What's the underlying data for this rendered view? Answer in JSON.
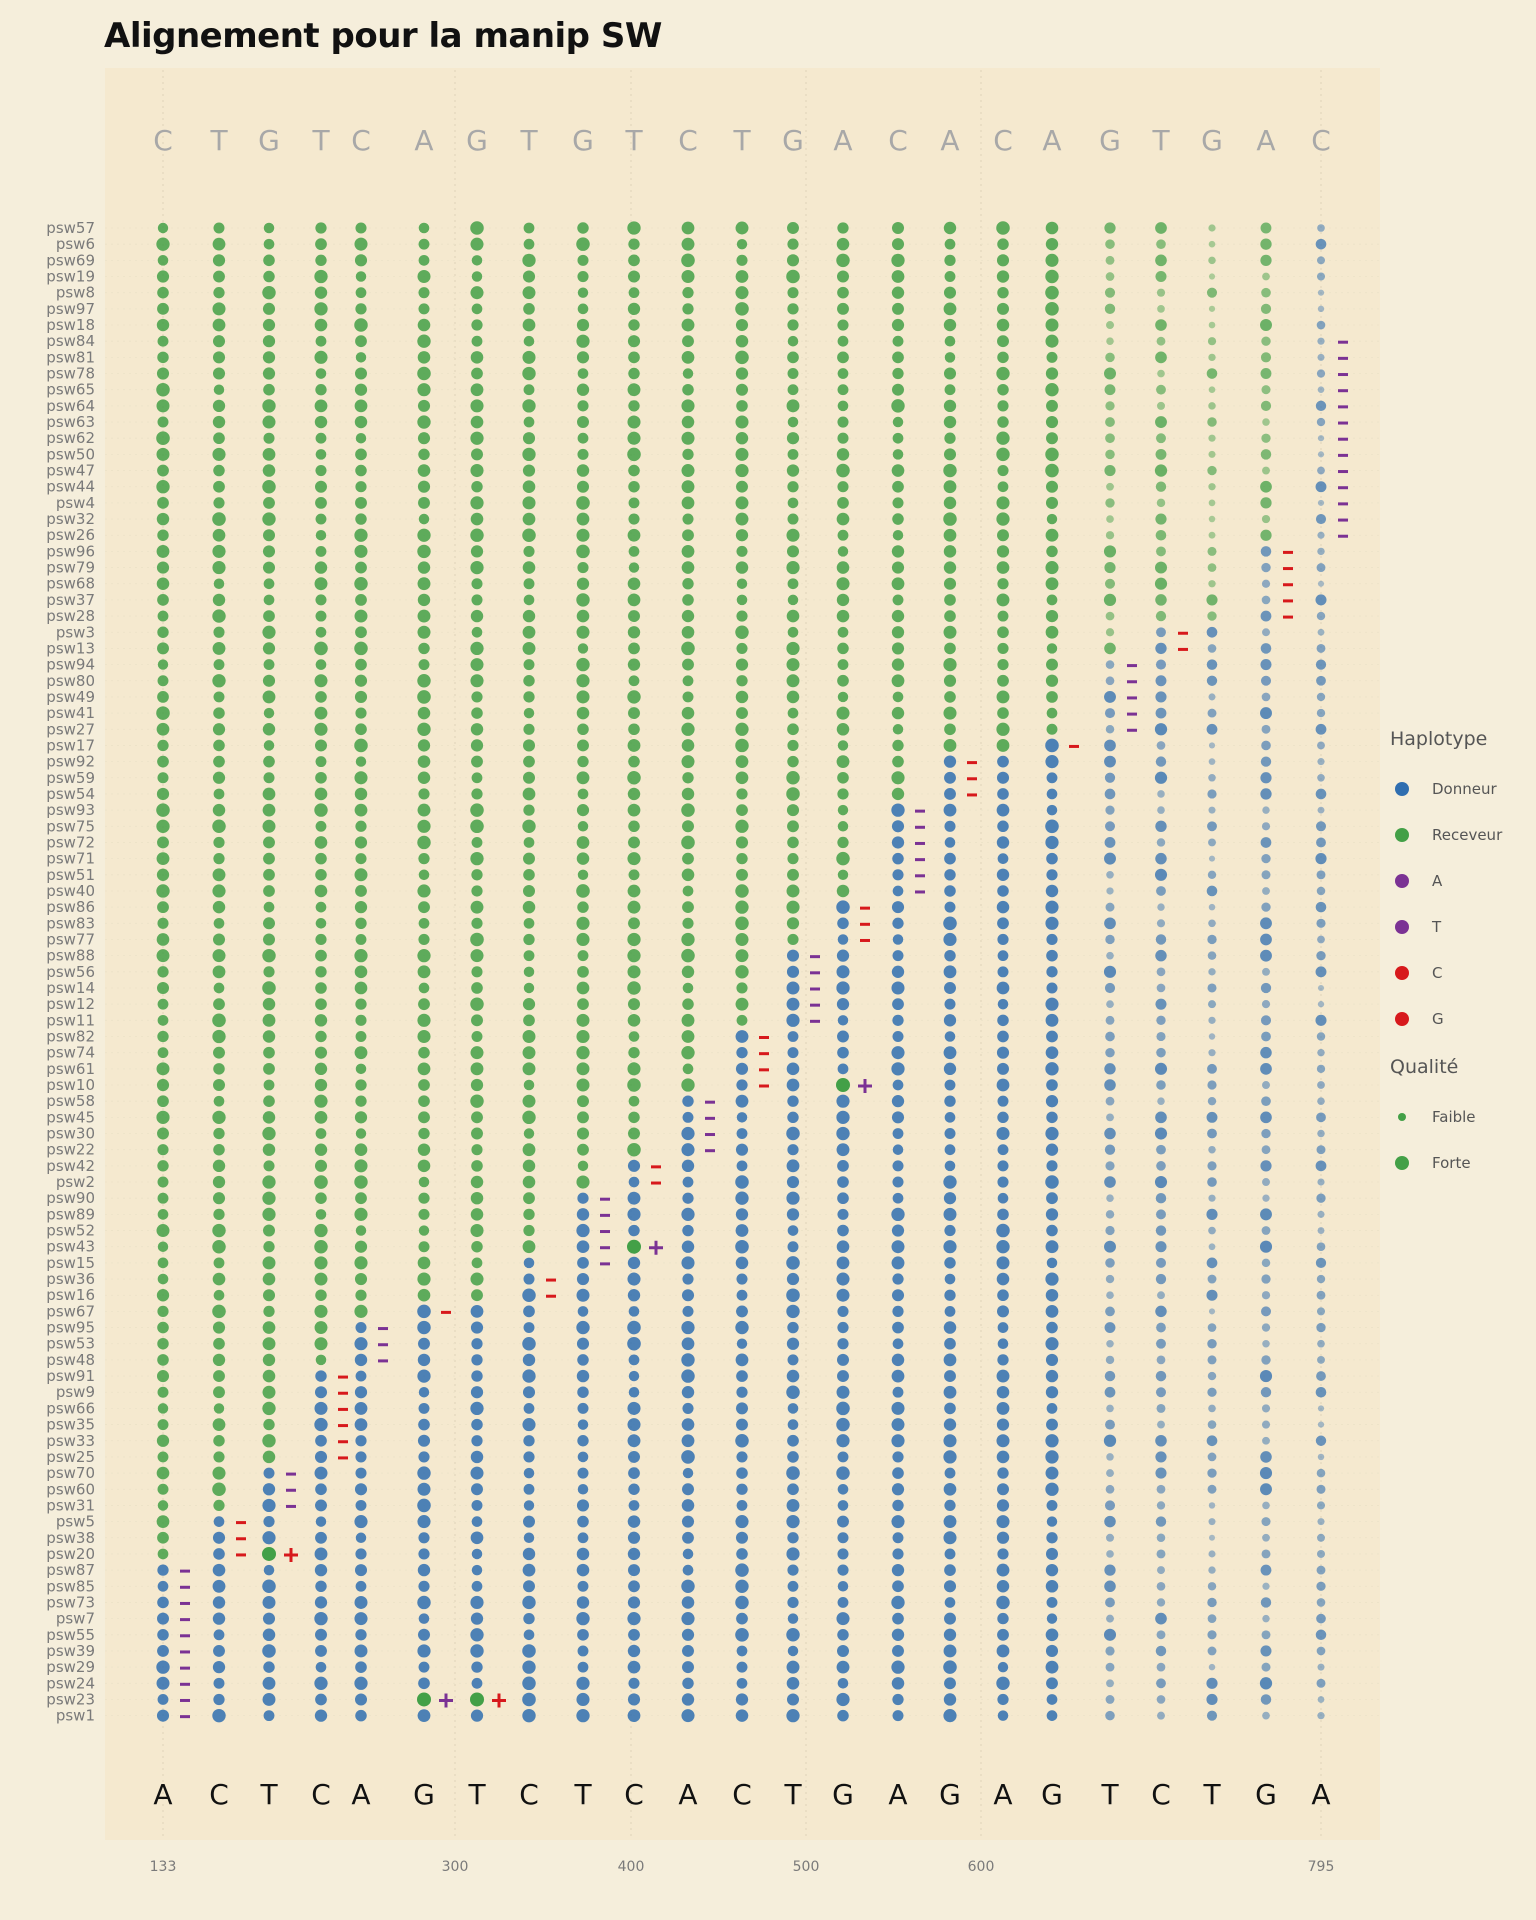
{
  "chart_data": {
    "type": "scatter",
    "title": "Alignement pour la manip SW",
    "x_ticks": [
      "133",
      "300",
      "400",
      "500",
      "600",
      "795"
    ],
    "top_bases": [
      "C",
      "T",
      "G",
      "T",
      "C",
      "A",
      "G",
      "T",
      "G",
      "T",
      "C",
      "T",
      "G",
      "A",
      "C",
      "A",
      "C",
      "A",
      "G",
      "T",
      "G",
      "A",
      "C"
    ],
    "bottom_bases": [
      "A",
      "C",
      "T",
      "C",
      "A",
      "G",
      "T",
      "C",
      "T",
      "C",
      "A",
      "C",
      "T",
      "G",
      "A",
      "G",
      "A",
      "G",
      "T",
      "C",
      "T",
      "G",
      "A"
    ],
    "rows": [
      "psw57",
      "psw6",
      "psw69",
      "psw19",
      "psw8",
      "psw97",
      "psw18",
      "psw84",
      "psw81",
      "psw78",
      "psw65",
      "psw64",
      "psw63",
      "psw62",
      "psw50",
      "psw47",
      "psw44",
      "psw4",
      "psw32",
      "psw26",
      "psw96",
      "psw79",
      "psw68",
      "psw37",
      "psw28",
      "psw3",
      "psw13",
      "psw94",
      "psw80",
      "psw49",
      "psw41",
      "psw27",
      "psw17",
      "psw92",
      "psw59",
      "psw54",
      "psw93",
      "psw75",
      "psw72",
      "psw71",
      "psw51",
      "psw40",
      "psw86",
      "psw83",
      "psw77",
      "psw88",
      "psw56",
      "psw14",
      "psw12",
      "psw11",
      "psw82",
      "psw74",
      "psw61",
      "psw10",
      "psw58",
      "psw45",
      "psw30",
      "psw22",
      "psw42",
      "psw2",
      "psw90",
      "psw89",
      "psw52",
      "psw43",
      "psw15",
      "psw36",
      "psw16",
      "psw67",
      "psw95",
      "psw53",
      "psw48",
      "psw91",
      "psw9",
      "psw66",
      "psw35",
      "psw33",
      "psw25",
      "psw70",
      "psw60",
      "psw31",
      "psw5",
      "psw38",
      "psw20",
      "psw87",
      "psw85",
      "psw73",
      "psw7",
      "psw55",
      "psw39",
      "psw29",
      "psw24",
      "psw23",
      "psw1"
    ],
    "switch_column": [
      22,
      22,
      22,
      22,
      22,
      22,
      22,
      22,
      22,
      22,
      22,
      22,
      22,
      22,
      22,
      22,
      22,
      22,
      22,
      22,
      21,
      21,
      21,
      21,
      21,
      19,
      19,
      18,
      18,
      18,
      18,
      18,
      17,
      15,
      15,
      15,
      14,
      14,
      14,
      14,
      14,
      14,
      13,
      13,
      13,
      12,
      12,
      12,
      12,
      12,
      11,
      11,
      11,
      11,
      10,
      10,
      10,
      10,
      9,
      9,
      8,
      8,
      8,
      8,
      7,
      7,
      7,
      5,
      4,
      4,
      4,
      3,
      3,
      3,
      3,
      3,
      3,
      2,
      2,
      2,
      1,
      1,
      1,
      0,
      0,
      0,
      0,
      0,
      0,
      0,
      0,
      0,
      0
    ],
    "recombination_marks": [
      {
        "row": "psw84",
        "column": 22,
        "symbol": "−",
        "base": "A"
      },
      {
        "row": "psw81",
        "column": 22,
        "symbol": "−",
        "base": "A"
      },
      {
        "row": "psw78",
        "column": 22,
        "symbol": "−",
        "base": "A"
      },
      {
        "row": "psw65",
        "column": 22,
        "symbol": "−",
        "base": "A"
      },
      {
        "row": "psw64",
        "column": 22,
        "symbol": "−",
        "base": "A"
      },
      {
        "row": "psw63",
        "column": 22,
        "symbol": "−",
        "base": "A"
      },
      {
        "row": "psw62",
        "column": 22,
        "symbol": "−",
        "base": "A"
      },
      {
        "row": "psw50",
        "column": 22,
        "symbol": "−",
        "base": "A"
      },
      {
        "row": "psw47",
        "column": 22,
        "symbol": "−",
        "base": "A"
      },
      {
        "row": "psw44",
        "column": 22,
        "symbol": "−",
        "base": "A"
      },
      {
        "row": "psw4",
        "column": 22,
        "symbol": "−",
        "base": "A"
      },
      {
        "row": "psw32",
        "column": 22,
        "symbol": "−",
        "base": "A"
      },
      {
        "row": "psw26",
        "column": 22,
        "symbol": "−",
        "base": "A"
      },
      {
        "row": "psw96",
        "column": 21,
        "symbol": "−",
        "base": "G"
      },
      {
        "row": "psw79",
        "column": 21,
        "symbol": "−",
        "base": "G"
      },
      {
        "row": "psw68",
        "column": 21,
        "symbol": "−",
        "base": "G"
      },
      {
        "row": "psw37",
        "column": 21,
        "symbol": "−",
        "base": "G"
      },
      {
        "row": "psw28",
        "column": 21,
        "symbol": "−",
        "base": "G"
      },
      {
        "row": "psw3",
        "column": 19,
        "symbol": "−",
        "base": "C"
      },
      {
        "row": "psw13",
        "column": 19,
        "symbol": "−",
        "base": "C"
      },
      {
        "row": "psw94",
        "column": 18,
        "symbol": "−",
        "base": "T"
      },
      {
        "row": "psw80",
        "column": 18,
        "symbol": "−",
        "base": "T"
      },
      {
        "row": "psw49",
        "column": 18,
        "symbol": "−",
        "base": "T"
      },
      {
        "row": "psw41",
        "column": 18,
        "symbol": "−",
        "base": "T"
      },
      {
        "row": "psw27",
        "column": 18,
        "symbol": "−",
        "base": "T"
      },
      {
        "row": "psw17",
        "column": 17,
        "symbol": "−",
        "base": "G"
      },
      {
        "row": "psw92",
        "column": 15,
        "symbol": "−",
        "base": "G"
      },
      {
        "row": "psw59",
        "column": 15,
        "symbol": "−",
        "base": "G"
      },
      {
        "row": "psw54",
        "column": 15,
        "symbol": "−",
        "base": "G"
      },
      {
        "row": "psw93",
        "column": 14,
        "symbol": "−",
        "base": "A"
      },
      {
        "row": "psw75",
        "column": 14,
        "symbol": "−",
        "base": "A"
      },
      {
        "row": "psw72",
        "column": 14,
        "symbol": "−",
        "base": "A"
      },
      {
        "row": "psw71",
        "column": 14,
        "symbol": "−",
        "base": "A"
      },
      {
        "row": "psw51",
        "column": 14,
        "symbol": "−",
        "base": "A"
      },
      {
        "row": "psw40",
        "column": 14,
        "symbol": "−",
        "base": "A"
      },
      {
        "row": "psw86",
        "column": 13,
        "symbol": "−",
        "base": "G"
      },
      {
        "row": "psw83",
        "column": 13,
        "symbol": "−",
        "base": "G"
      },
      {
        "row": "psw77",
        "column": 13,
        "symbol": "−",
        "base": "G"
      },
      {
        "row": "psw10",
        "column": 13,
        "symbol": "+",
        "base": "A"
      },
      {
        "row": "psw88",
        "column": 12,
        "symbol": "−",
        "base": "T"
      },
      {
        "row": "psw56",
        "column": 12,
        "symbol": "−",
        "base": "T"
      },
      {
        "row": "psw14",
        "column": 12,
        "symbol": "−",
        "base": "T"
      },
      {
        "row": "psw12",
        "column": 12,
        "symbol": "−",
        "base": "T"
      },
      {
        "row": "psw11",
        "column": 12,
        "symbol": "−",
        "base": "T"
      },
      {
        "row": "psw82",
        "column": 11,
        "symbol": "−",
        "base": "C"
      },
      {
        "row": "psw74",
        "column": 11,
        "symbol": "−",
        "base": "C"
      },
      {
        "row": "psw61",
        "column": 11,
        "symbol": "−",
        "base": "C"
      },
      {
        "row": "psw10",
        "column": 11,
        "symbol": "−",
        "base": "C"
      },
      {
        "row": "psw58",
        "column": 10,
        "symbol": "−",
        "base": "A"
      },
      {
        "row": "psw45",
        "column": 10,
        "symbol": "−",
        "base": "A"
      },
      {
        "row": "psw30",
        "column": 10,
        "symbol": "−",
        "base": "A"
      },
      {
        "row": "psw22",
        "column": 10,
        "symbol": "−",
        "base": "A"
      },
      {
        "row": "psw42",
        "column": 9,
        "symbol": "−",
        "base": "C"
      },
      {
        "row": "psw2",
        "column": 9,
        "symbol": "−",
        "base": "C"
      },
      {
        "row": "psw43",
        "column": 9,
        "symbol": "+",
        "base": "T"
      },
      {
        "row": "psw90",
        "column": 8,
        "symbol": "−",
        "base": "T"
      },
      {
        "row": "psw89",
        "column": 8,
        "symbol": "−",
        "base": "T"
      },
      {
        "row": "psw52",
        "column": 8,
        "symbol": "−",
        "base": "T"
      },
      {
        "row": "psw43",
        "column": 8,
        "symbol": "−",
        "base": "T"
      },
      {
        "row": "psw15",
        "column": 8,
        "symbol": "−",
        "base": "T"
      },
      {
        "row": "psw36",
        "column": 7,
        "symbol": "−",
        "base": "C"
      },
      {
        "row": "psw16",
        "column": 7,
        "symbol": "−",
        "base": "C"
      },
      {
        "row": "psw67",
        "column": 5,
        "symbol": "−",
        "base": "G"
      },
      {
        "row": "psw95",
        "column": 4,
        "symbol": "−",
        "base": "A"
      },
      {
        "row": "psw53",
        "column": 4,
        "symbol": "−",
        "base": "A"
      },
      {
        "row": "psw48",
        "column": 4,
        "symbol": "−",
        "base": "A"
      },
      {
        "row": "psw91",
        "column": 3,
        "symbol": "−",
        "base": "C"
      },
      {
        "row": "psw9",
        "column": 3,
        "symbol": "−",
        "base": "C"
      },
      {
        "row": "psw66",
        "column": 3,
        "symbol": "−",
        "base": "C"
      },
      {
        "row": "psw35",
        "column": 3,
        "symbol": "−",
        "base": "C"
      },
      {
        "row": "psw33",
        "column": 3,
        "symbol": "−",
        "base": "C"
      },
      {
        "row": "psw25",
        "column": 3,
        "symbol": "−",
        "base": "C"
      },
      {
        "row": "psw70",
        "column": 2,
        "symbol": "−",
        "base": "T"
      },
      {
        "row": "psw60",
        "column": 2,
        "symbol": "−",
        "base": "T"
      },
      {
        "row": "psw31",
        "column": 2,
        "symbol": "−",
        "base": "T"
      },
      {
        "row": "psw20",
        "column": 2,
        "symbol": "+",
        "base": "C"
      },
      {
        "row": "psw5",
        "column": 1,
        "symbol": "−",
        "base": "C"
      },
      {
        "row": "psw38",
        "column": 1,
        "symbol": "−",
        "base": "C"
      },
      {
        "row": "psw20",
        "column": 1,
        "symbol": "−",
        "base": "C"
      },
      {
        "row": "psw87",
        "column": 0,
        "symbol": "−",
        "base": "A"
      },
      {
        "row": "psw85",
        "column": 0,
        "symbol": "−",
        "base": "A"
      },
      {
        "row": "psw73",
        "column": 0,
        "symbol": "−",
        "base": "A"
      },
      {
        "row": "psw7",
        "column": 0,
        "symbol": "−",
        "base": "A"
      },
      {
        "row": "psw55",
        "column": 0,
        "symbol": "−",
        "base": "A"
      },
      {
        "row": "psw39",
        "column": 0,
        "symbol": "−",
        "base": "A"
      },
      {
        "row": "psw29",
        "column": 0,
        "symbol": "−",
        "base": "A"
      },
      {
        "row": "psw24",
        "column": 0,
        "symbol": "−",
        "base": "A"
      },
      {
        "row": "psw23",
        "column": 0,
        "symbol": "−",
        "base": "A"
      },
      {
        "row": "psw1",
        "column": 0,
        "symbol": "−",
        "base": "A"
      },
      {
        "row": "psw23",
        "column": 5,
        "symbol": "+",
        "base": "A"
      },
      {
        "row": "psw23",
        "column": 6,
        "symbol": "+",
        "base": "G"
      }
    ],
    "exceptions": [
      {
        "row": "psw10",
        "column": 13,
        "haplotype": "Receveur"
      },
      {
        "row": "psw43",
        "column": 9,
        "haplotype": "Receveur"
      },
      {
        "row": "psw20",
        "column": 2,
        "haplotype": "Receveur"
      },
      {
        "row": "psw23",
        "column": 5,
        "haplotype": "Receveur"
      },
      {
        "row": "psw23",
        "column": 6,
        "haplotype": "Receveur"
      }
    ],
    "legend": {
      "haplotype_title": "Haplotype",
      "haplotype": [
        {
          "label": "Donneur",
          "color": "#2f6eb0"
        },
        {
          "label": "Receveur",
          "color": "#43a047"
        },
        {
          "label": "A",
          "color": "#7b3294"
        },
        {
          "label": "T",
          "color": "#7b3294"
        },
        {
          "label": "C",
          "color": "#d7191c"
        },
        {
          "label": "G",
          "color": "#d7191c"
        }
      ],
      "quality_title": "Qualité",
      "quality": [
        {
          "label": "Faible"
        },
        {
          "label": "Forte"
        }
      ]
    },
    "colors": {
      "donneur": "#2f6eb0",
      "receveur": "#43a047",
      "purple": "#7b3294",
      "red": "#d7191c",
      "top_base": "#a8a8a8",
      "bottom_base": "#111111",
      "panel": "#f5e9cf"
    },
    "grid": true
  }
}
